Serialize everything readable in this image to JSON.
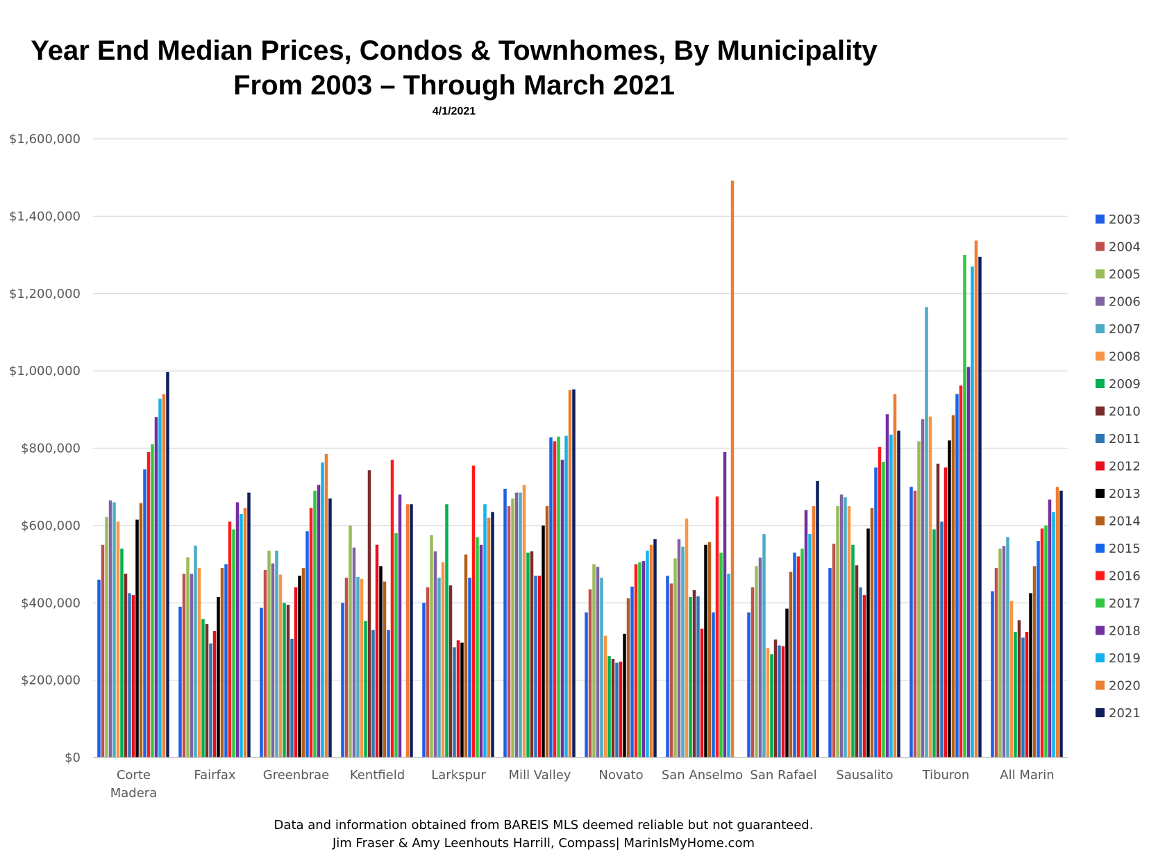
{
  "chart_data": {
    "type": "bar",
    "title_line1": "Year End Median Prices, Condos & Townhomes, By Municipality",
    "title_line2": "From 2003 – Through March 2021",
    "subtitle": "4/1/2021",
    "footer_line1": "Data and information obtained from BAREIS MLS deemed reliable but not guaranteed.",
    "footer_line2": "Jim Fraser & Amy Leenhouts Harrill, Compass| MarinIsMyHome.com",
    "xlabel": "",
    "ylabel": "",
    "ylim": [
      0,
      1600000
    ],
    "y_ticks": [
      0,
      200000,
      400000,
      600000,
      800000,
      1000000,
      1200000,
      1400000,
      1600000
    ],
    "y_tick_labels": [
      "$0",
      "$200,000",
      "$400,000",
      "$600,000",
      "$800,000",
      "$1,000,000",
      "$1,200,000",
      "$1,400,000",
      "$1,600,000"
    ],
    "grid": true,
    "legend_position": "right",
    "categories": [
      "Corte Madera",
      "Fairfax",
      "Greenbrae",
      "Kentfield",
      "Larkspur",
      "Mill Valley",
      "Novato",
      "San Anselmo",
      "San Rafael",
      "Sausalito",
      "Tiburon",
      "All Marin"
    ],
    "category_label_lines": [
      [
        "Corte",
        "Madera"
      ],
      [
        "Fairfax"
      ],
      [
        "Greenbrae"
      ],
      [
        "Kentfield"
      ],
      [
        "Larkspur"
      ],
      [
        "Mill Valley"
      ],
      [
        "Novato"
      ],
      [
        "San Anselmo"
      ],
      [
        "San Rafael"
      ],
      [
        "Sausalito"
      ],
      [
        "Tiburon"
      ],
      [
        "All Marin"
      ]
    ],
    "series": [
      {
        "name": "2003",
        "color": "#1f5fe6",
        "values": [
          460000,
          390000,
          387000,
          400000,
          400000,
          695000,
          375000,
          470000,
          375000,
          490000,
          700000,
          430000
        ]
      },
      {
        "name": "2004",
        "color": "#c0504d",
        "values": [
          550000,
          475000,
          485000,
          465000,
          440000,
          650000,
          435000,
          450000,
          440000,
          553000,
          690000,
          490000
        ]
      },
      {
        "name": "2005",
        "color": "#9bbb59",
        "values": [
          622000,
          518000,
          535000,
          600000,
          575000,
          670000,
          500000,
          515000,
          495000,
          650000,
          818000,
          540000
        ]
      },
      {
        "name": "2006",
        "color": "#8064a2",
        "values": [
          665000,
          475000,
          502000,
          543000,
          533000,
          685000,
          493000,
          565000,
          517000,
          680000,
          875000,
          547000
        ]
      },
      {
        "name": "2007",
        "color": "#4bacc6",
        "values": [
          660000,
          548000,
          535000,
          467000,
          465000,
          685000,
          465000,
          545000,
          578000,
          673000,
          1165000,
          570000
        ]
      },
      {
        "name": "2008",
        "color": "#f79646",
        "values": [
          610000,
          490000,
          473000,
          462000,
          505000,
          705000,
          315000,
          618000,
          283000,
          650000,
          882000,
          405000
        ]
      },
      {
        "name": "2009",
        "color": "#00b050",
        "values": [
          540000,
          358000,
          400000,
          353000,
          655000,
          530000,
          262000,
          415000,
          267000,
          550000,
          590000,
          325000
        ]
      },
      {
        "name": "2010",
        "color": "#7b2c2c",
        "values": [
          475000,
          345000,
          395000,
          743000,
          445000,
          533000,
          255000,
          433000,
          305000,
          497000,
          760000,
          355000
        ]
      },
      {
        "name": "2011",
        "color": "#2e75b6",
        "values": [
          425000,
          295000,
          307000,
          330000,
          285000,
          470000,
          245000,
          417000,
          290000,
          440000,
          610000,
          310000
        ]
      },
      {
        "name": "2012",
        "color": "#e8101b",
        "values": [
          420000,
          327000,
          440000,
          550000,
          303000,
          470000,
          248000,
          333000,
          288000,
          420000,
          750000,
          325000
        ]
      },
      {
        "name": "2013",
        "color": "#000000",
        "values": [
          615000,
          415000,
          470000,
          495000,
          297000,
          600000,
          320000,
          550000,
          385000,
          592000,
          820000,
          425000
        ]
      },
      {
        "name": "2014",
        "color": "#b35f1a",
        "values": [
          658000,
          490000,
          490000,
          455000,
          525000,
          650000,
          412000,
          557000,
          480000,
          645000,
          885000,
          495000
        ]
      },
      {
        "name": "2015",
        "color": "#1766e8",
        "values": [
          745000,
          500000,
          585000,
          330000,
          465000,
          828000,
          442000,
          375000,
          530000,
          750000,
          940000,
          560000
        ]
      },
      {
        "name": "2016",
        "color": "#ff1a1a",
        "values": [
          790000,
          610000,
          645000,
          770000,
          755000,
          818000,
          500000,
          675000,
          520000,
          803000,
          962000,
          592000
        ]
      },
      {
        "name": "2017",
        "color": "#2fc740",
        "values": [
          810000,
          590000,
          690000,
          580000,
          570000,
          830000,
          505000,
          530000,
          540000,
          765000,
          1300000,
          600000
        ]
      },
      {
        "name": "2018",
        "color": "#7030a0",
        "values": [
          880000,
          660000,
          705000,
          680000,
          550000,
          770000,
          508000,
          790000,
          640000,
          888000,
          1010000,
          667000
        ]
      },
      {
        "name": "2019",
        "color": "#12b3ec",
        "values": [
          928000,
          630000,
          763000,
          0,
          655000,
          832000,
          535000,
          475000,
          578000,
          835000,
          1270000,
          635000
        ]
      },
      {
        "name": "2020",
        "color": "#ed7d31",
        "values": [
          940000,
          645000,
          785000,
          655000,
          620000,
          950000,
          550000,
          1492000,
          650000,
          940000,
          1337000,
          700000
        ]
      },
      {
        "name": "2021",
        "color": "#0f1f5c",
        "values": [
          997000,
          685000,
          670000,
          655000,
          635000,
          952000,
          565000,
          0,
          715000,
          845000,
          1295000,
          690000
        ]
      }
    ]
  }
}
